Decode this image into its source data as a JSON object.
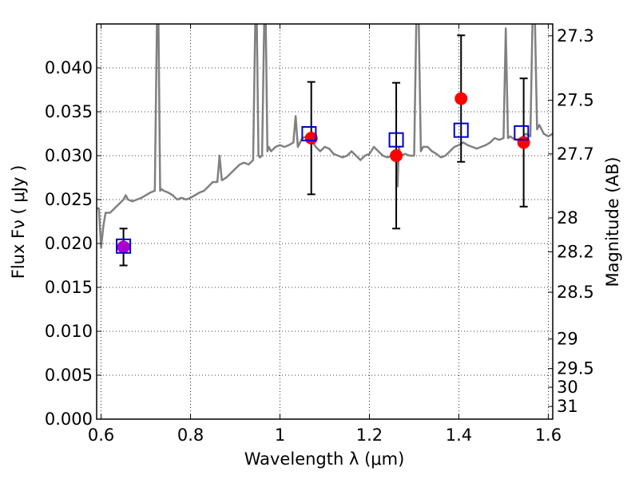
{
  "chart_data": {
    "type": "scatter",
    "xlabel": "Wavelength λ (μm)",
    "ylabel": "Flux Fν ( μJy )",
    "y2label": "Magnitude (AB)",
    "xlim": [
      0.59,
      1.61
    ],
    "ylim": [
      0.0,
      0.045
    ],
    "x_ticks": [
      0.6,
      0.8,
      1.0,
      1.2,
      1.4,
      1.6
    ],
    "x_tick_labels": [
      "0.6",
      "0.8",
      "1",
      "1.2",
      "1.4",
      "1.6"
    ],
    "y_ticks": [
      0.0,
      0.005,
      0.01,
      0.015,
      0.02,
      0.025,
      0.03,
      0.035,
      0.04
    ],
    "y_tick_labels": [
      "0.000",
      "0.005",
      "0.010",
      "0.015",
      "0.020",
      "0.025",
      "0.030",
      "0.035",
      "0.040"
    ],
    "mag_ticks": [
      "27.3",
      "27.5",
      "27.7",
      "28",
      "28.2",
      "28.5",
      "29",
      "29.5",
      "30",
      "31"
    ],
    "grid": true,
    "colors": {
      "spectrum": "#808080",
      "observed": "#ff0000",
      "model": "#0000cc",
      "overlap": "#aa00cc"
    },
    "series": [
      {
        "kind": "line",
        "x": [
          0.59,
          0.595,
          0.6,
          0.605,
          0.61,
          0.62,
          0.63,
          0.64,
          0.65,
          0.655,
          0.66,
          0.67,
          0.68,
          0.69,
          0.7,
          0.71,
          0.72,
          0.725,
          0.728,
          0.732,
          0.735,
          0.74,
          0.75,
          0.76,
          0.77,
          0.78,
          0.79,
          0.8,
          0.81,
          0.82,
          0.83,
          0.84,
          0.85,
          0.86,
          0.865,
          0.87,
          0.88,
          0.89,
          0.9,
          0.91,
          0.92,
          0.93,
          0.94,
          0.945,
          0.948,
          0.952,
          0.955,
          0.96,
          0.965,
          0.968,
          0.972,
          0.975,
          0.98,
          0.99,
          1.0,
          1.01,
          1.02,
          1.03,
          1.035,
          1.04,
          1.05,
          1.06,
          1.07,
          1.08,
          1.09,
          1.1,
          1.11,
          1.12,
          1.13,
          1.14,
          1.15,
          1.16,
          1.17,
          1.18,
          1.19,
          1.2,
          1.21,
          1.22,
          1.23,
          1.24,
          1.25,
          1.26,
          1.263,
          1.266,
          1.27,
          1.28,
          1.29,
          1.3,
          1.305,
          1.31,
          1.315,
          1.32,
          1.33,
          1.34,
          1.35,
          1.36,
          1.37,
          1.38,
          1.39,
          1.4,
          1.41,
          1.42,
          1.43,
          1.44,
          1.45,
          1.46,
          1.47,
          1.48,
          1.49,
          1.5,
          1.505,
          1.51,
          1.515,
          1.52,
          1.53,
          1.54,
          1.55,
          1.56,
          1.565,
          1.57,
          1.575,
          1.58,
          1.59,
          1.6,
          1.61
        ],
        "y": [
          0.024,
          0.024,
          0.0195,
          0.022,
          0.0235,
          0.0235,
          0.024,
          0.0245,
          0.025,
          0.0255,
          0.025,
          0.0248,
          0.025,
          0.0252,
          0.0255,
          0.0258,
          0.026,
          0.046,
          0.046,
          0.026,
          0.0262,
          0.026,
          0.0258,
          0.0255,
          0.025,
          0.0252,
          0.025,
          0.0252,
          0.0255,
          0.0258,
          0.026,
          0.0265,
          0.027,
          0.027,
          0.03,
          0.0272,
          0.0275,
          0.028,
          0.0285,
          0.029,
          0.0292,
          0.029,
          0.0295,
          0.046,
          0.046,
          0.03,
          0.0298,
          0.03,
          0.046,
          0.046,
          0.0305,
          0.031,
          0.0305,
          0.031,
          0.0312,
          0.031,
          0.0312,
          0.0315,
          0.0345,
          0.031,
          0.032,
          0.0322,
          0.0318,
          0.031,
          0.0305,
          0.031,
          0.0308,
          0.0302,
          0.03,
          0.0298,
          0.03,
          0.0305,
          0.03,
          0.0295,
          0.03,
          0.0302,
          0.031,
          0.0305,
          0.03,
          0.0298,
          0.03,
          0.0302,
          0.0265,
          0.031,
          0.03,
          0.0302,
          0.03,
          0.03,
          0.046,
          0.046,
          0.0305,
          0.031,
          0.031,
          0.0305,
          0.0302,
          0.0298,
          0.03,
          0.0305,
          0.031,
          0.0312,
          0.0315,
          0.0312,
          0.031,
          0.0308,
          0.031,
          0.0312,
          0.0315,
          0.032,
          0.0318,
          0.032,
          0.0445,
          0.032,
          0.0322,
          0.032,
          0.0318,
          0.032,
          0.0325,
          0.0322,
          0.046,
          0.046,
          0.033,
          0.0335,
          0.0325,
          0.0322,
          0.0325
        ]
      },
      {
        "kind": "errorbar",
        "x": [
          0.65,
          1.07,
          1.26,
          1.405,
          1.545
        ],
        "y": [
          0.0196,
          0.032,
          0.03,
          0.0365,
          0.0315
        ],
        "yerr_low": [
          0.0021,
          0.0064,
          0.0083,
          0.0072,
          0.0073
        ],
        "yerr_high": [
          0.0021,
          0.0064,
          0.0083,
          0.0072,
          0.0073
        ]
      },
      {
        "kind": "marker-square",
        "x": [
          0.65,
          1.065,
          1.26,
          1.405,
          1.54
        ],
        "y": [
          0.0197,
          0.0325,
          0.0318,
          0.0329,
          0.0326
        ]
      }
    ]
  }
}
